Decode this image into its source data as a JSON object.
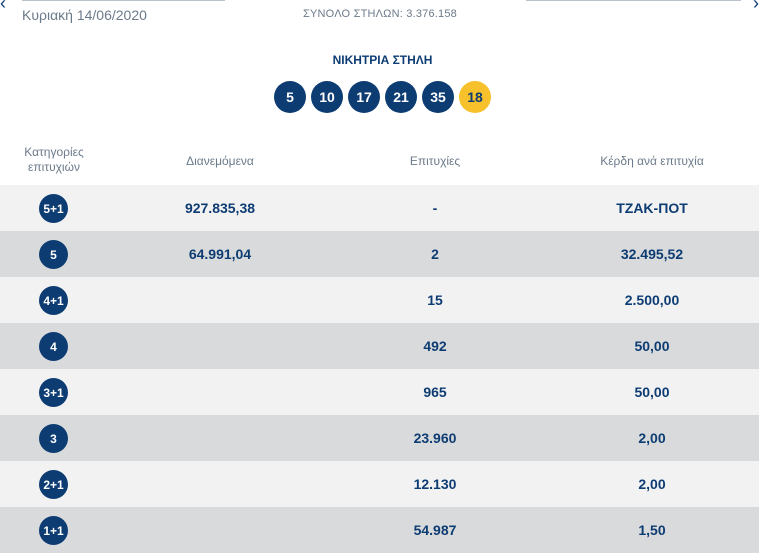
{
  "header": {
    "date": "Κυριακή 14/06/2020",
    "total_columns": "ΣΥΝΟΛΟ ΣΤΗΛΩΝ: 3.376.158"
  },
  "winning": {
    "title": "ΝΙΚΗΤΡΙΑ ΣΤΗΛΗ",
    "numbers": [
      "5",
      "10",
      "17",
      "21",
      "35"
    ],
    "joker": "18",
    "joker_color": "#f6c12b",
    "ball_color": "#0d3c73"
  },
  "table": {
    "headers": {
      "category": "Κατηγορίες επιτυχιών",
      "distributed": "Διανεμόμενα",
      "winners": "Επιτυχίες",
      "prize": "Κέρδη ανά επιτυχία"
    },
    "rows": [
      {
        "category": "5+1",
        "distributed": "927.835,38",
        "winners": "-",
        "prize": "ΤΖΑΚ-ΠΟΤ"
      },
      {
        "category": "5",
        "distributed": "64.991,04",
        "winners": "2",
        "prize": "32.495,52"
      },
      {
        "category": "4+1",
        "distributed": "",
        "winners": "15",
        "prize": "2.500,00"
      },
      {
        "category": "4",
        "distributed": "",
        "winners": "492",
        "prize": "50,00"
      },
      {
        "category": "3+1",
        "distributed": "",
        "winners": "965",
        "prize": "50,00"
      },
      {
        "category": "3",
        "distributed": "",
        "winners": "23.960",
        "prize": "2,00"
      },
      {
        "category": "2+1",
        "distributed": "",
        "winners": "12.130",
        "prize": "2,00"
      },
      {
        "category": "1+1",
        "distributed": "",
        "winners": "54.987",
        "prize": "1,50"
      }
    ]
  },
  "icons": {
    "prev": "chevron-left-icon",
    "next": "chevron-right-icon"
  }
}
